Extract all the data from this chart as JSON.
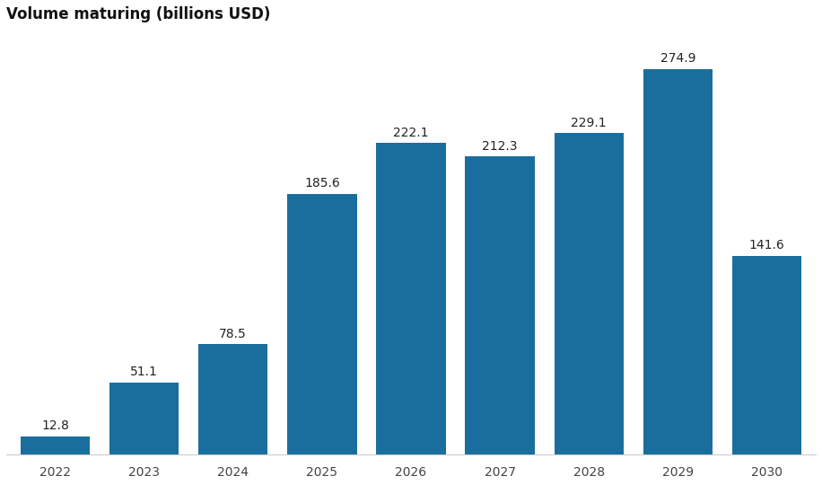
{
  "categories": [
    "2022",
    "2023",
    "2024",
    "2025",
    "2026",
    "2027",
    "2028",
    "2029",
    "2030"
  ],
  "values": [
    12.8,
    51.1,
    78.5,
    185.6,
    222.1,
    212.3,
    229.1,
    274.9,
    141.6
  ],
  "bar_color": "#1a6e9e",
  "title": "Volume maturing (billions USD)",
  "title_fontsize": 12,
  "label_fontsize": 10,
  "tick_fontsize": 10,
  "ylim": [
    0,
    300
  ],
  "bar_width": 0.78,
  "background_color": "#ffffff",
  "label_color": "#222222",
  "tick_color": "#444444",
  "spine_color": "#cccccc"
}
